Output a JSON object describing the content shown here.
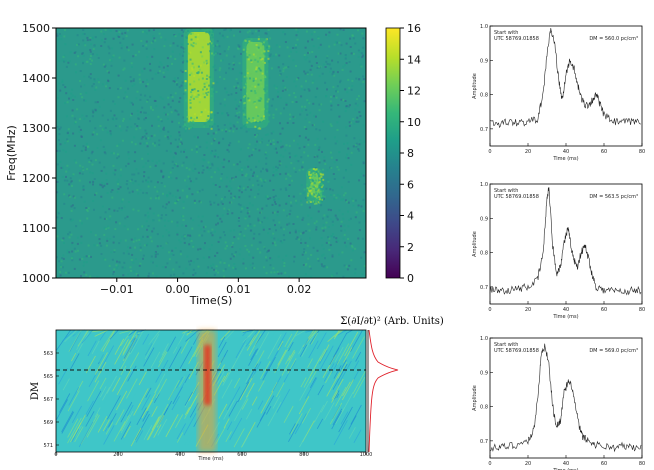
{
  "colors": {
    "viridis": [
      "#440154",
      "#482878",
      "#3e4989",
      "#31688e",
      "#26828e",
      "#1f9e89",
      "#35b779",
      "#6ece58",
      "#b5de2b",
      "#fde725"
    ],
    "jet_background": "#3fc6c8",
    "red_curve": "#e0202a",
    "trace": "#222222"
  },
  "chart_data": [
    {
      "type": "heatmap",
      "title": "",
      "xlabel": "Time(S)",
      "ylabel": "Freq(MHz)",
      "x_ticks": [
        "−0.01",
        "0.00",
        "0.01",
        "0.02"
      ],
      "x_tick_values": [
        -0.01,
        0.0,
        0.01,
        0.02
      ],
      "xlim": [
        -0.02,
        0.031
      ],
      "y_ticks": [
        "1000",
        "1100",
        "1200",
        "1300",
        "1400",
        "1500"
      ],
      "y_tick_values": [
        1000,
        1100,
        1200,
        1300,
        1400,
        1500
      ],
      "ylim": [
        1000,
        1500
      ],
      "colorbar_ticks": [
        "0",
        "2",
        "4",
        "6",
        "8",
        "10",
        "12",
        "14",
        "16"
      ],
      "colorbar_range": [
        0,
        16
      ],
      "colormap": "viridis",
      "components": [
        {
          "t": 0.0035,
          "f_low": 1300,
          "f_high": 1500,
          "intensity": 15
        },
        {
          "t": 0.0128,
          "f_low": 1300,
          "f_high": 1480,
          "intensity": 12
        },
        {
          "t": 0.0225,
          "f_low": 1150,
          "f_high": 1220,
          "intensity": 12
        }
      ]
    },
    {
      "type": "heatmap",
      "xlabel": "Time (ms)",
      "ylabel": "DM",
      "y_ticks": [
        "563",
        "565",
        "567",
        "569",
        "571"
      ],
      "x_ticks": [
        "0",
        "200",
        "400",
        "600",
        "800",
        "1000"
      ],
      "xlim": [
        0,
        1000
      ],
      "colormap": "jet",
      "side_label": "Σ(∂I/∂t)² (Arb. Units)",
      "best_dm_marker": "dashed line"
    },
    {
      "type": "line",
      "annotation_left": [
        "Start with",
        "UTC 58769.01858"
      ],
      "annotation_right": "DM = 560.0 pc/cm³",
      "xlabel": "Time (ms)",
      "ylabel": "Amplitude",
      "xlim": [
        0,
        80
      ],
      "ylim": [
        0.65,
        1.0
      ],
      "x_ticks": [
        "0",
        "20",
        "40",
        "60",
        "80"
      ],
      "y_ticks": [
        "0.7",
        "0.8",
        "0.9",
        "1.0"
      ],
      "y_tick_values": [
        0.7,
        0.8,
        0.9,
        1.0
      ],
      "x": [
        0,
        5,
        10,
        15,
        20,
        25,
        28,
        30,
        32,
        34,
        36,
        38,
        40,
        42,
        44,
        46,
        48,
        50,
        52,
        54,
        56,
        58,
        60,
        65,
        70,
        75,
        80
      ],
      "y": [
        0.72,
        0.715,
        0.72,
        0.718,
        0.72,
        0.73,
        0.8,
        0.92,
        0.99,
        0.95,
        0.85,
        0.78,
        0.86,
        0.9,
        0.88,
        0.83,
        0.79,
        0.77,
        0.77,
        0.785,
        0.8,
        0.77,
        0.74,
        0.72,
        0.72,
        0.72,
        0.725
      ]
    },
    {
      "type": "line",
      "annotation_left": [
        "Start with",
        "UTC 58769.01858"
      ],
      "annotation_right": "DM = 563.5 pc/cm³",
      "xlabel": "Time (ms)",
      "ylabel": "Amplitude",
      "xlim": [
        0,
        80
      ],
      "ylim": [
        0.65,
        1.0
      ],
      "x_ticks": [
        "0",
        "20",
        "40",
        "60",
        "80"
      ],
      "y_ticks": [
        "0.7",
        "0.8",
        "0.9",
        "1.0"
      ],
      "y_tick_values": [
        0.7,
        0.8,
        0.9,
        1.0
      ],
      "x": [
        0,
        5,
        10,
        15,
        20,
        25,
        28,
        30,
        31,
        33,
        35,
        37,
        39,
        41,
        42,
        44,
        46,
        48,
        50,
        52,
        54,
        56,
        60,
        65,
        70,
        75,
        80
      ],
      "y": [
        0.69,
        0.69,
        0.69,
        0.695,
        0.7,
        0.72,
        0.8,
        0.96,
        0.99,
        0.82,
        0.74,
        0.76,
        0.83,
        0.87,
        0.84,
        0.78,
        0.76,
        0.8,
        0.82,
        0.78,
        0.73,
        0.7,
        0.69,
        0.69,
        0.685,
        0.69,
        0.69
      ]
    },
    {
      "type": "line",
      "annotation_left": [
        "Start with",
        "UTC 58769.01858"
      ],
      "annotation_right": "DM = 569.0 pc/cm³",
      "xlabel": "Time (ms)",
      "ylabel": "Amplitude",
      "xlim": [
        0,
        80
      ],
      "ylim": [
        0.65,
        1.0
      ],
      "x_ticks": [
        "0",
        "20",
        "40",
        "60",
        "80"
      ],
      "y_ticks": [
        "0.7",
        "0.8",
        "0.9",
        "1.0"
      ],
      "y_tick_values": [
        0.7,
        0.8,
        0.9,
        1.0
      ],
      "x": [
        0,
        5,
        10,
        15,
        20,
        23,
        25,
        27,
        29,
        31,
        33,
        35,
        37,
        39,
        41,
        43,
        45,
        47,
        49,
        52,
        55,
        60,
        65,
        70,
        75,
        80
      ],
      "y": [
        0.68,
        0.68,
        0.685,
        0.69,
        0.7,
        0.73,
        0.82,
        0.95,
        0.98,
        0.92,
        0.8,
        0.74,
        0.76,
        0.84,
        0.87,
        0.86,
        0.8,
        0.74,
        0.71,
        0.7,
        0.69,
        0.685,
        0.68,
        0.685,
        0.68,
        0.68
      ]
    }
  ]
}
